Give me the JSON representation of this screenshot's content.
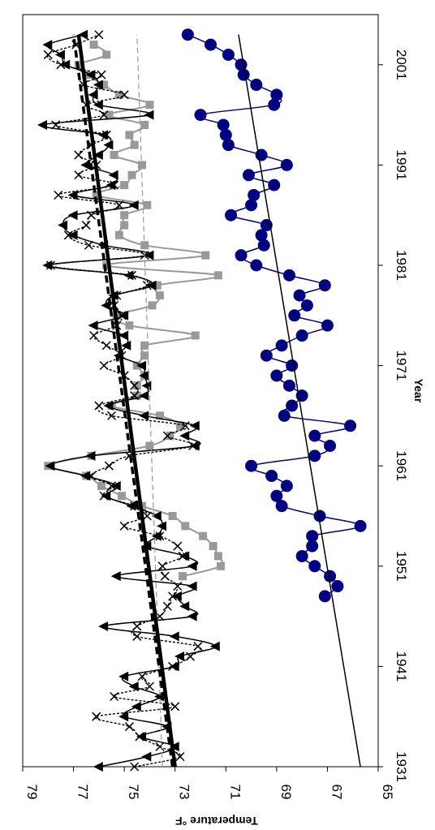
{
  "chart_data": {
    "type": "line",
    "orientation": "rotated-90-clockwise",
    "title": "",
    "xlabel": "Year",
    "ylabel": "Temperature °F",
    "xlim": [
      1931,
      2006
    ],
    "ylim": [
      65,
      79
    ],
    "xticks": [
      1931,
      1941,
      1951,
      1961,
      1971,
      1981,
      1991,
      2001
    ],
    "yticks": [
      65,
      67,
      69,
      71,
      73,
      75,
      77,
      79
    ],
    "grid": false,
    "legend": "none",
    "series": [
      {
        "style": "black-triangle",
        "color": "#000000",
        "x": [
          1931,
          1932,
          1933,
          1934,
          1935,
          1936,
          1937,
          1938,
          1939,
          1940,
          1941,
          1942,
          1943,
          1944,
          1945,
          1946,
          1947,
          1948,
          1949,
          1950,
          1951,
          1952,
          1953,
          1954,
          1955,
          1956,
          1957,
          1958,
          1959,
          1960,
          1961,
          1962,
          1963,
          1964,
          1965,
          1966,
          1967,
          1968,
          1969,
          1970,
          1971,
          1972,
          1973,
          1974,
          1975,
          1976,
          1977,
          1978,
          1979,
          1980,
          1981,
          1982,
          1983,
          1984,
          1985,
          1986,
          1987,
          1988,
          1989,
          1990,
          1991,
          1992,
          1993,
          1994,
          1995,
          1996,
          1997,
          1998,
          1999,
          2000,
          2001,
          2002,
          2003,
          2004
        ],
        "values": [
          76.0,
          74.1,
          73.0,
          74.3,
          73.3,
          75.0,
          74.5,
          73.6,
          74.6,
          75.0,
          73.0,
          72.8,
          71.4,
          73.0,
          75.8,
          72.3,
          72.6,
          72.9,
          72.3,
          75.3,
          72.3,
          72.6,
          74.1,
          73.7,
          73.5,
          73.7,
          74.7,
          75.7,
          75.3,
          76.5,
          77.9,
          76.3,
          72.2,
          72.6,
          72.2,
          74.2,
          75.6,
          74.2,
          74.1,
          74.2,
          74.3,
          75.2,
          74.9,
          75.0,
          76.2,
          75.0,
          75.7,
          75.4,
          73.9,
          74.8,
          78.0,
          74.0,
          75.8,
          77.0,
          77.4,
          77.0,
          74.6,
          77.0,
          75.5,
          75.4,
          76.5,
          76.0,
          75.6,
          75.8,
          78.2,
          74.0,
          76.0,
          76.2,
          76.0,
          76.3,
          77.3,
          77.5,
          78.0,
          76.6
        ]
      },
      {
        "style": "black-x-dashed",
        "color": "#000000",
        "x": [
          1931,
          1932,
          1933,
          1934,
          1935,
          1936,
          1937,
          1938,
          1939,
          1940,
          1941,
          1942,
          1943,
          1944,
          1945,
          1946,
          1947,
          1948,
          1949,
          1950,
          1951,
          1952,
          1953,
          1954,
          1955,
          1956,
          1957,
          1958,
          1959,
          1960,
          1961,
          1962,
          1963,
          1964,
          1965,
          1966,
          1967,
          1968,
          1969,
          1970,
          1971,
          1972,
          1973,
          1974,
          1975,
          1976,
          1977,
          1978,
          1979,
          1980,
          1981,
          1982,
          1983,
          1984,
          1985,
          1986,
          1987,
          1988,
          1989,
          1990,
          1991,
          1992,
          1993,
          1994,
          1995,
          1996,
          1997,
          1998,
          1999,
          2000,
          2001,
          2002,
          2003,
          2004
        ],
        "values": [
          74.6,
          72.8,
          73.6,
          74.4,
          74.8,
          76.1,
          73.0,
          75.4,
          74.0,
          74.3,
          73.1,
          72.4,
          72.1,
          74.5,
          74.5,
          73.6,
          73.3,
          73.1,
          72.9,
          73.4,
          73.5,
          72.7,
          72.9,
          73.6,
          75.0,
          74.1,
          74.6,
          75.8,
          75.5,
          76.3,
          75.6,
          74.8,
          72.3,
          73.3,
          72.6,
          75.5,
          76.0,
          74.6,
          74.6,
          75.0,
          75.8,
          75.1,
          75.7,
          76.2,
          75.3,
          75.1,
          75.4,
          75.3,
          74.1,
          74.7,
          77.9,
          74.2,
          76.4,
          77.2,
          76.5,
          76.3,
          75.2,
          77.6,
          75.4,
          76.8,
          76.1,
          76.8,
          76.3,
          75.7,
          77.7,
          75.8,
          76.5,
          75.0,
          76.6,
          75.9,
          77.5,
          78.0,
          76.9,
          76.0
        ]
      },
      {
        "style": "gray-square",
        "color": "#999999",
        "x": [
          1950,
          1951,
          1952,
          1953,
          1954,
          1955,
          1956,
          1957,
          1958,
          1959,
          1960,
          1961,
          1962,
          1963,
          1964,
          1965,
          1966,
          1967,
          1968,
          1969,
          1970,
          1971,
          1972,
          1973,
          1974,
          1975,
          1976,
          1977,
          1978,
          1979,
          1980,
          1981,
          1982,
          1983,
          1984,
          1985,
          1986,
          1987,
          1988,
          1989,
          1990,
          1991,
          1992,
          1993,
          1994,
          1995,
          1996,
          1997,
          1998,
          1999,
          2000,
          2001,
          2002,
          2003
        ],
        "values": [
          72.7,
          71.2,
          71.3,
          71.5,
          71.9,
          72.6,
          73.1,
          74.3,
          75.1,
          75.9,
          76.5,
          78.0,
          76.3,
          74.0,
          73.2,
          72.8,
          73.6,
          75.5,
          74.5,
          74.5,
          74.2,
          74.5,
          74.2,
          74.2,
          72.2,
          74.8,
          75.3,
          73.9,
          73.6,
          73.7,
          71.3,
          75.7,
          71.8,
          74.2,
          75.2,
          75.0,
          75.0,
          74.1,
          76.1,
          75.0,
          74.7,
          74.3,
          75.4,
          74.6,
          74.8,
          74.2,
          75.6,
          74.0,
          75.2,
          75.8,
          76.5,
          76.8,
          75.7,
          76.2
        ]
      },
      {
        "style": "navy-circle",
        "color": "#000080",
        "x": [
          1948,
          1949,
          1950,
          1951,
          1952,
          1953,
          1954,
          1955,
          1956,
          1957,
          1958,
          1959,
          1960,
          1961,
          1962,
          1963,
          1964,
          1965,
          1966,
          1967,
          1968,
          1969,
          1970,
          1971,
          1972,
          1973,
          1974,
          1975,
          1976,
          1977,
          1978,
          1979,
          1980,
          1981,
          1982,
          1983,
          1984,
          1985,
          1986,
          1987,
          1988,
          1989,
          1990,
          1991,
          1992,
          1993,
          1994,
          1995,
          1996,
          1997,
          1998,
          1999,
          2000,
          2001,
          2002,
          2003,
          2004
        ],
        "values": [
          67.1,
          66.6,
          66.9,
          67.5,
          68.0,
          67.6,
          67.6,
          65.7,
          67.3,
          68.8,
          69.0,
          68.6,
          69.2,
          70.0,
          67.5,
          66.9,
          67.5,
          66.1,
          68.7,
          68.4,
          68.0,
          68.5,
          69.0,
          68.4,
          69.4,
          68.8,
          68.0,
          67.0,
          68.3,
          67.8,
          68.1,
          67.1,
          68.5,
          69.8,
          70.4,
          69.5,
          69.6,
          69.4,
          70.8,
          70.0,
          69.9,
          69.1,
          70.1,
          68.6,
          69.6,
          70.9,
          71.0,
          71.1,
          72.0,
          69.1,
          69.0,
          69.8,
          70.3,
          70.4,
          70.9,
          71.6,
          72.5
        ]
      },
      {
        "style": "trend-thick",
        "color": "#000000",
        "x": [
          1931,
          2004
        ],
        "values": [
          73.0,
          76.8
        ]
      },
      {
        "style": "trend-dashed-thick",
        "color": "#000000",
        "x": [
          1931,
          2004
        ],
        "values": [
          73.1,
          77.0
        ]
      },
      {
        "style": "trend-gray-dashed",
        "color": "#999999",
        "x": [
          1931,
          2004
        ],
        "values": [
          73.5,
          74.5
        ]
      },
      {
        "style": "trend-thin",
        "color": "#000000",
        "x": [
          1931,
          2004
        ],
        "values": [
          65.7,
          70.5
        ]
      }
    ]
  }
}
